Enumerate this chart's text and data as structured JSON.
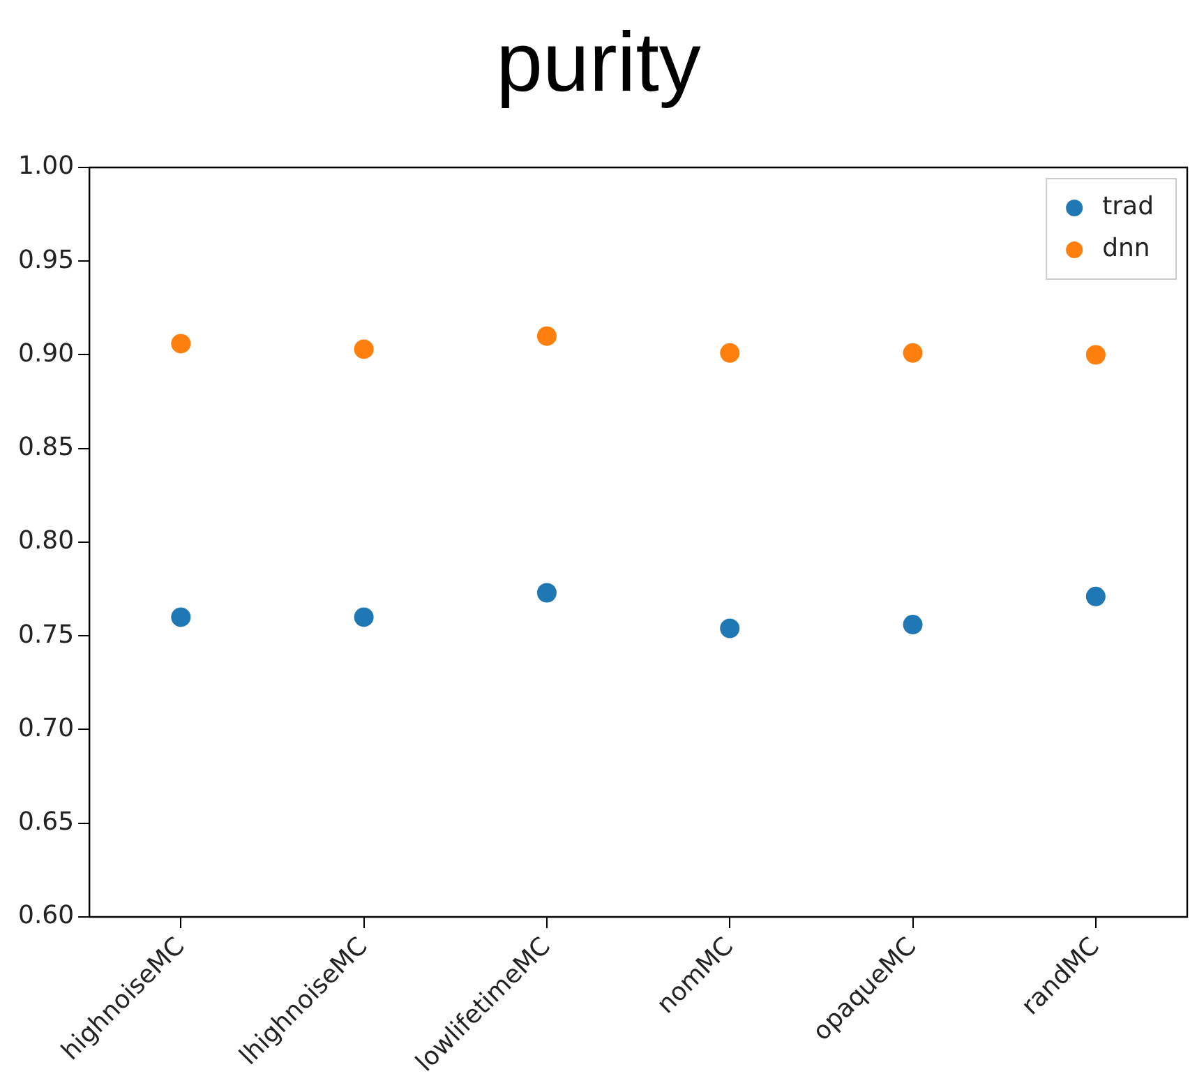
{
  "chart_data": {
    "type": "scatter",
    "title": "purity",
    "categories": [
      "highnoiseMC",
      "lhighnoiseMC",
      "lowlifetimeMC",
      "nomMC",
      "opaqueMC",
      "randMC"
    ],
    "series": [
      {
        "name": "trad",
        "color": "#1f77b4",
        "values": [
          0.76,
          0.76,
          0.773,
          0.754,
          0.756,
          0.771
        ]
      },
      {
        "name": "dnn",
        "color": "#ff7f0e",
        "values": [
          0.906,
          0.903,
          0.91,
          0.901,
          0.901,
          0.9
        ]
      }
    ],
    "ylim": [
      0.6,
      1.0
    ],
    "yticks": [
      {
        "value": 0.6,
        "label": "0.60"
      },
      0.65,
      {
        "value": 0.7,
        "label": "0.70"
      },
      0.75,
      {
        "value": 0.8,
        "label": "0.80"
      },
      0.85,
      {
        "value": 0.9,
        "label": "0.90"
      },
      0.95,
      {
        "value": 1.0,
        "label": "1.00"
      }
    ],
    "grid": false,
    "legend": "top right",
    "marker": "circle"
  }
}
